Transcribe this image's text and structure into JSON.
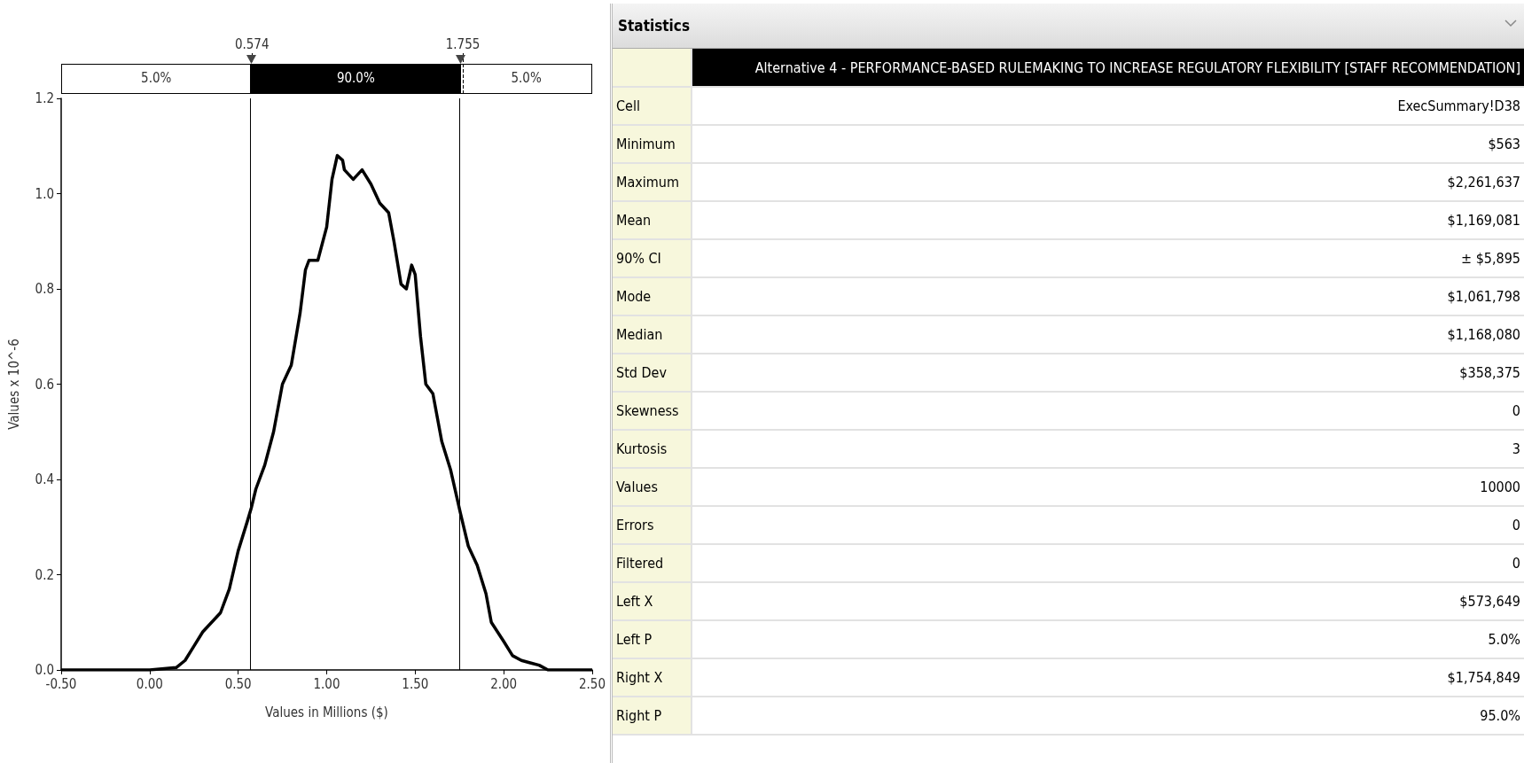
{
  "chart_data": [
    {
      "type": "line",
      "xlabel": "Values in Millions ($)",
      "ylabel": "Values x 10^-6",
      "x": [
        -0.5,
        0.0,
        0.15,
        0.2,
        0.25,
        0.3,
        0.35,
        0.4,
        0.45,
        0.5,
        0.55,
        0.574,
        0.6,
        0.65,
        0.7,
        0.75,
        0.8,
        0.85,
        0.88,
        0.9,
        0.95,
        1.0,
        1.03,
        1.06,
        1.09,
        1.1,
        1.15,
        1.2,
        1.25,
        1.3,
        1.35,
        1.38,
        1.42,
        1.45,
        1.48,
        1.5,
        1.53,
        1.56,
        1.6,
        1.65,
        1.7,
        1.755,
        1.8,
        1.85,
        1.9,
        1.93,
        2.0,
        2.05,
        2.1,
        2.15,
        2.2,
        2.25,
        2.5
      ],
      "series": [
        {
          "color": "#000000",
          "values": [
            0,
            0,
            0.005,
            0.02,
            0.05,
            0.08,
            0.1,
            0.12,
            0.17,
            0.25,
            0.31,
            0.34,
            0.38,
            0.43,
            0.5,
            0.6,
            0.64,
            0.75,
            0.84,
            0.86,
            0.86,
            0.93,
            1.03,
            1.08,
            1.07,
            1.05,
            1.03,
            1.05,
            1.02,
            0.98,
            0.96,
            0.9,
            0.81,
            0.8,
            0.85,
            0.83,
            0.7,
            0.6,
            0.58,
            0.48,
            0.42,
            0.33,
            0.26,
            0.22,
            0.16,
            0.1,
            0.06,
            0.03,
            0.02,
            0.015,
            0.01,
            0,
            0
          ]
        }
      ],
      "xlim": [
        -0.5,
        2.5
      ],
      "xticks": [
        {
          "value": -0.5,
          "label": "-0.50"
        },
        {
          "value": 0,
          "label": "0.00"
        },
        {
          "value": 0.5,
          "label": "0.50"
        },
        {
          "value": 1,
          "label": "1.00"
        },
        {
          "value": 1.5,
          "label": "1.50"
        },
        {
          "value": 2,
          "label": "2.00"
        },
        {
          "value": 2.5,
          "label": "2.50"
        }
      ],
      "ylim": [
        0,
        1.2
      ],
      "yticks": [
        {
          "value": 0,
          "label": "0.0"
        },
        {
          "value": 0.2,
          "label": "0.2"
        },
        {
          "value": 0.4,
          "label": "0.4"
        },
        {
          "value": 0.6,
          "label": "0.6"
        },
        {
          "value": 0.8,
          "label": "0.8"
        },
        {
          "value": 1,
          "label": "1.0"
        },
        {
          "value": 1.2,
          "label": "1.2"
        }
      ],
      "ref_lines": [
        {
          "axis": "x",
          "value": 0.574,
          "label": "0.574",
          "color": "#000000"
        },
        {
          "axis": "x",
          "value": 1.755,
          "label": "1.755",
          "color": "#000000"
        }
      ],
      "annotations": [
        "5.0%",
        "90.0%",
        "5.0%"
      ],
      "marker": "none",
      "line_style": "solid",
      "grid": false
    },
    {
      "type": "other",
      "title": "Statistics",
      "subtitle": "Alternative 4 - PERFORMANCE-BASED RULEMAKING TO INCREASE REGULATORY FLEXIBILITY [STAFF RECOMMENDATION]",
      "categories": [
        "Cell",
        "Minimum",
        "Maximum",
        "Mean",
        "90% CI",
        "Mode",
        "Median",
        "Std Dev",
        "Skewness",
        "Kurtosis",
        "Values",
        "Errors",
        "Filtered",
        "Left X",
        "Left P",
        "Right X",
        "Right P"
      ],
      "value_labels": [
        "ExecSummary!D38",
        "$563",
        "$2,261,637",
        "$1,169,081",
        "± $5,895",
        "$1,061,798",
        "$1,168,080",
        "$358,375",
        "0",
        "3",
        "10000",
        "0",
        "0",
        "$573,649",
        "5.0%",
        "$1,754,849",
        "95.0%"
      ]
    }
  ]
}
